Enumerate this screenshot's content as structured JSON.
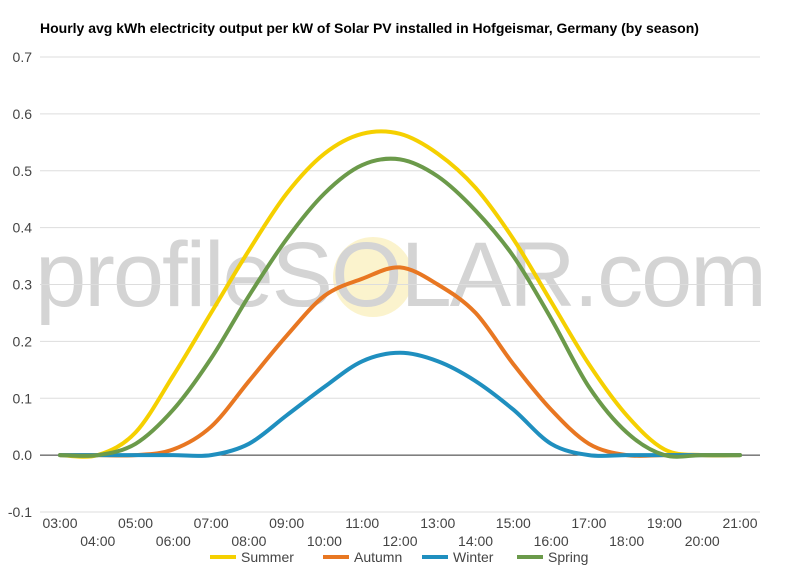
{
  "chart_data": {
    "type": "line",
    "title": "Hourly avg kWh electricity output per kW of Solar PV installed in Hofgeismar, Germany (by season)",
    "xlabel": "",
    "ylabel": "",
    "x": [
      "03:00",
      "04:00",
      "05:00",
      "06:00",
      "07:00",
      "08:00",
      "09:00",
      "10:00",
      "11:00",
      "12:00",
      "13:00",
      "14:00",
      "15:00",
      "16:00",
      "17:00",
      "18:00",
      "19:00",
      "20:00",
      "21:00"
    ],
    "yticks": [
      "-0.1",
      "0.0",
      "0.1",
      "0.2",
      "0.3",
      "0.4",
      "0.5",
      "0.6",
      "0.7"
    ],
    "ylim": [
      -0.1,
      0.7
    ],
    "grid": true,
    "legend_position": "bottom",
    "series": [
      {
        "name": "Summer",
        "color": "#f5d000",
        "values": [
          0.0,
          0.0,
          0.04,
          0.14,
          0.25,
          0.36,
          0.46,
          0.53,
          0.565,
          0.565,
          0.53,
          0.47,
          0.38,
          0.27,
          0.16,
          0.07,
          0.01,
          0.0,
          0.0
        ]
      },
      {
        "name": "Autumn",
        "color": "#e87722",
        "values": [
          0.0,
          0.0,
          0.0,
          0.01,
          0.05,
          0.13,
          0.21,
          0.28,
          0.31,
          0.33,
          0.3,
          0.25,
          0.16,
          0.08,
          0.02,
          0.0,
          0.0,
          0.0,
          0.0
        ]
      },
      {
        "name": "Winter",
        "color": "#1f8fbf",
        "values": [
          0.0,
          0.0,
          0.0,
          0.0,
          0.0,
          0.02,
          0.07,
          0.12,
          0.165,
          0.18,
          0.165,
          0.13,
          0.08,
          0.02,
          0.0,
          0.0,
          0.0,
          0.0,
          0.0
        ]
      },
      {
        "name": "Spring",
        "color": "#6b9a4a",
        "values": [
          0.0,
          0.0,
          0.02,
          0.08,
          0.17,
          0.28,
          0.38,
          0.46,
          0.51,
          0.52,
          0.49,
          0.43,
          0.35,
          0.24,
          0.12,
          0.04,
          0.0,
          0.0,
          0.0
        ]
      }
    ],
    "watermark": "profileSOLAR.com"
  }
}
